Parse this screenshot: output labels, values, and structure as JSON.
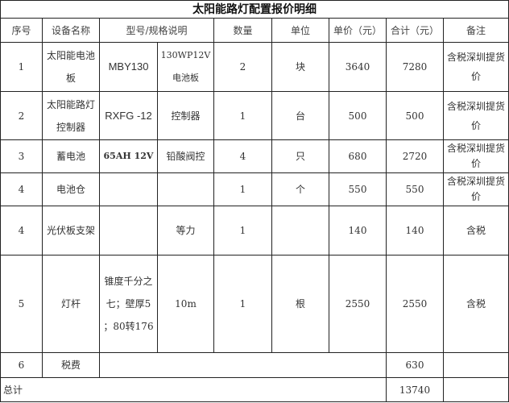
{
  "title": "太阳能路灯配置报价明细",
  "headers": [
    "序号",
    "设备名称",
    "型号/规格说明",
    "数量",
    "单位",
    "单价（元）",
    "合计（元）",
    "备注"
  ],
  "rows": [
    {
      "no": "1",
      "name": "太阳能电池板",
      "model": "MBY130",
      "spec": "130WP12V电池板",
      "qty": "2",
      "unit": "块",
      "price": "3640",
      "total": "7280",
      "note": "含税深圳提货价"
    },
    {
      "no": "2",
      "name": "太阳能路灯控制器",
      "model": "RXFG -12",
      "spec": "控制器",
      "qty": "1",
      "unit": "台",
      "price": "500",
      "total": "500",
      "note": "含税深圳提货价"
    },
    {
      "no": "3",
      "name": "蓄电池",
      "model": "65AH 12V",
      "spec": "铅酸阀控",
      "qty": "4",
      "unit": "只",
      "price": "680",
      "total": "2720",
      "note": "含税深圳提货价"
    },
    {
      "no": "4",
      "name": "电池仓",
      "model": "",
      "spec": "",
      "qty": "1",
      "unit": "个",
      "price": "550",
      "total": "550",
      "note": "含税深圳提货价"
    },
    {
      "no": "4",
      "name": "光伏板支架",
      "model": "",
      "spec": "等力",
      "qty": "1",
      "unit": "",
      "price": "140",
      "total": "140",
      "note": "含税"
    },
    {
      "no": "5",
      "name": "灯杆",
      "model": "锥度千分之七；壁厚5 ；80转176",
      "spec": "10m",
      "qty": "1",
      "unit": "根",
      "price": "2550",
      "total": "2550",
      "note": "含税"
    }
  ],
  "tax": {
    "no": "6",
    "name": "税费",
    "total": "630"
  },
  "grand_total": {
    "label": "总计",
    "total": "13740"
  }
}
